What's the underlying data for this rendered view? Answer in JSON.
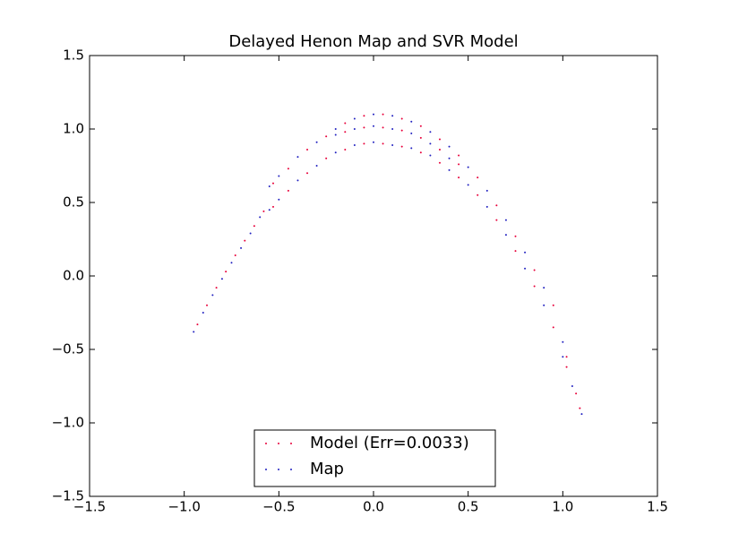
{
  "chart_data": {
    "type": "scatter",
    "title": "Delayed Henon Map and SVR Model",
    "xlim": [
      -1.5,
      1.5
    ],
    "ylim": [
      -1.5,
      1.5
    ],
    "xticks": [
      {
        "value": -1.5,
        "label": "−1.5"
      },
      {
        "value": -1.0,
        "label": "−1.0"
      },
      {
        "value": -0.5,
        "label": "−0.5"
      },
      {
        "value": 0,
        "label": "0.0"
      },
      0.5,
      {
        "value": 1.0,
        "label": "1.0"
      },
      1.5
    ],
    "yticks": [
      {
        "value": -1.5,
        "label": "−1.5"
      },
      {
        "value": -1.0,
        "label": "−1.0"
      },
      {
        "value": -0.5,
        "label": "−0.5"
      },
      {
        "value": 0,
        "label": "0.0"
      },
      0.5,
      {
        "value": 1.0,
        "label": "1.0"
      },
      1.5
    ],
    "legend": "lower center",
    "series": [
      {
        "name": "Model (Err=0.0033)",
        "color": "#e8003a",
        "x": [
          -0.93,
          -0.88,
          -0.83,
          -0.78,
          -0.73,
          -0.68,
          -0.63,
          -0.58,
          -0.53,
          -0.53,
          -0.45,
          -0.45,
          -0.35,
          -0.35,
          -0.25,
          -0.25,
          -0.15,
          -0.15,
          -0.15,
          -0.05,
          -0.05,
          -0.05,
          0.05,
          0.05,
          0.05,
          0.15,
          0.15,
          0.15,
          0.25,
          0.25,
          0.25,
          0.35,
          0.35,
          0.35,
          0.45,
          0.45,
          0.45,
          0.55,
          0.55,
          0.65,
          0.65,
          0.75,
          0.75,
          0.85,
          0.85,
          0.95,
          0.95,
          1.02,
          1.02,
          1.07,
          1.09
        ],
        "values": [
          -0.33,
          -0.2,
          -0.08,
          0.03,
          0.14,
          0.24,
          0.34,
          0.44,
          0.63,
          0.47,
          0.73,
          0.58,
          0.86,
          0.7,
          0.95,
          0.8,
          1.04,
          0.98,
          0.86,
          1.09,
          1.01,
          0.9,
          1.1,
          1.01,
          0.9,
          1.07,
          0.99,
          0.88,
          1.02,
          0.94,
          0.84,
          0.93,
          0.86,
          0.77,
          0.82,
          0.76,
          0.67,
          0.67,
          0.55,
          0.48,
          0.38,
          0.27,
          0.17,
          0.04,
          -0.07,
          -0.2,
          -0.35,
          -0.55,
          -0.62,
          -0.8,
          -0.9
        ]
      },
      {
        "name": "Map",
        "color": "#2020c0",
        "x": [
          -0.95,
          -0.9,
          -0.85,
          -0.8,
          -0.75,
          -0.7,
          -0.65,
          -0.6,
          -0.55,
          -0.55,
          -0.5,
          -0.5,
          -0.4,
          -0.4,
          -0.3,
          -0.3,
          -0.2,
          -0.2,
          -0.2,
          -0.1,
          -0.1,
          -0.1,
          0,
          0,
          0,
          0.1,
          0.1,
          0.1,
          0.2,
          0.2,
          0.2,
          0.3,
          0.3,
          0.3,
          0.4,
          0.4,
          0.4,
          0.5,
          0.5,
          0.6,
          0.6,
          0.7,
          0.7,
          0.8,
          0.8,
          0.9,
          0.9,
          1.0,
          1.0,
          1.05,
          1.1
        ],
        "values": [
          -0.38,
          -0.25,
          -0.13,
          -0.02,
          0.09,
          0.19,
          0.29,
          0.4,
          0.61,
          0.45,
          0.68,
          0.52,
          0.81,
          0.65,
          0.91,
          0.75,
          1.0,
          0.96,
          0.84,
          1.07,
          1.0,
          0.89,
          1.1,
          1.02,
          0.91,
          1.09,
          1.0,
          0.89,
          1.05,
          0.97,
          0.87,
          0.98,
          0.9,
          0.82,
          0.88,
          0.8,
          0.72,
          0.74,
          0.62,
          0.58,
          0.47,
          0.38,
          0.28,
          0.16,
          0.05,
          -0.08,
          -0.2,
          -0.45,
          -0.55,
          -0.75,
          -0.94
        ]
      }
    ]
  }
}
